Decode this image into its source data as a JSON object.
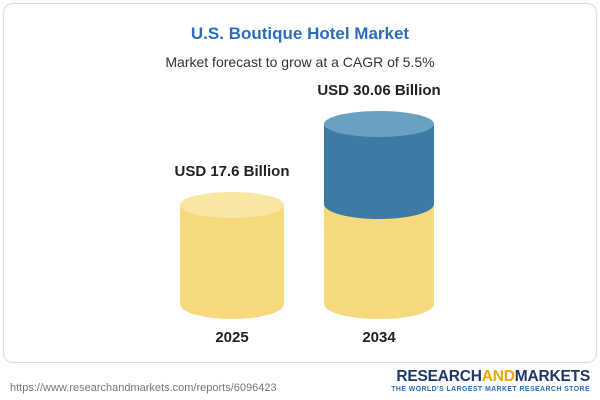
{
  "header": {
    "title": "U.S. Boutique Hotel Market",
    "subtitle": "Market forecast to grow at a CAGR of 5.5%"
  },
  "chart_data": {
    "type": "bar",
    "subtype": "cylinder-3d",
    "title": "U.S. Boutique Hotel Market",
    "subtitle": "Market forecast to grow at a CAGR of 5.5%",
    "categories": [
      "2025",
      "2034"
    ],
    "values": [
      17.6,
      30.06
    ],
    "data_labels": [
      "USD 17.6 Billion",
      "USD 30.06 Billion"
    ],
    "unit": "USD Billion",
    "cagr": "5.5%",
    "series": [
      {
        "name": "base-value",
        "values": [
          17.6,
          17.6
        ],
        "color": "#f6d87d"
      },
      {
        "name": "forecast-growth",
        "values": [
          0,
          12.46
        ],
        "color": "#3e7ba4"
      }
    ],
    "legend": "none",
    "grid": false,
    "axes": "none"
  },
  "colors": {
    "accent_blue": "#2a6ebb",
    "bar_yellow": "#f6d87d",
    "bar_yellow_top": "#f9e6a2",
    "bar_blue": "#3e7ba4",
    "bar_blue_top": "#6aa0c0",
    "logo_navy": "#1f3666",
    "logo_orange": "#f0a800"
  },
  "footer": {
    "url": "https://www.researchandmarkets.com/reports/6096423",
    "logo": {
      "part1": "RESEARCH",
      "part2": "AND",
      "part3": "MARKETS",
      "tagline": "THE WORLD'S LARGEST MARKET RESEARCH STORE"
    }
  }
}
